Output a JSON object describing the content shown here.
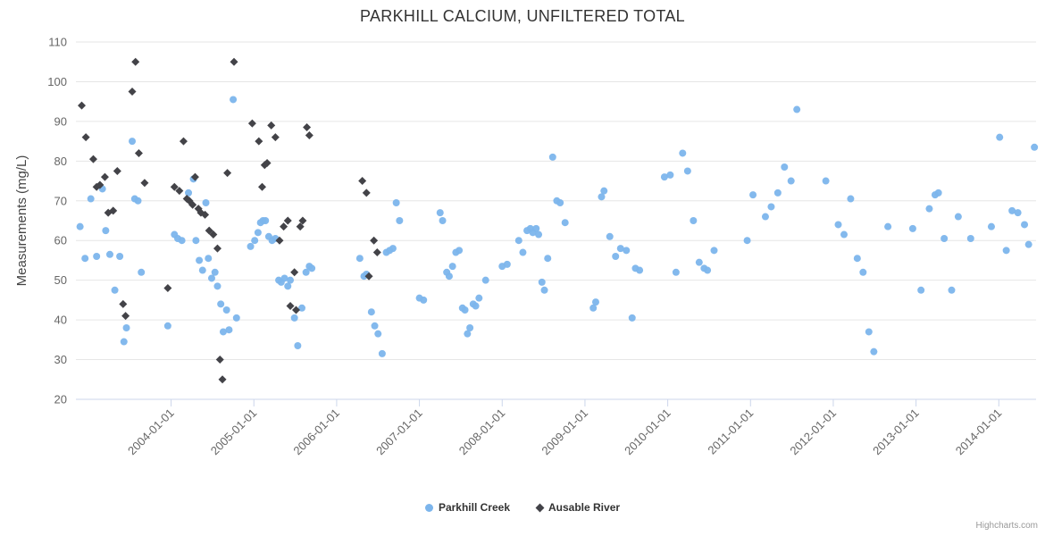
{
  "chart": {
    "credits": "Highcharts.com"
  },
  "chart_data": {
    "type": "scatter",
    "title": "PARKHILL CALCIUM, UNFILTERED TOTAL",
    "xlabel": "",
    "ylabel": "Measurements (mg/L)",
    "ylim": [
      20,
      110
    ],
    "yticks": [
      20,
      30,
      40,
      50,
      60,
      70,
      80,
      90,
      100,
      110
    ],
    "xlim": [
      2002.85,
      2014.45
    ],
    "xticks": [
      2004,
      2005,
      2006,
      2007,
      2008,
      2009,
      2010,
      2011,
      2012,
      2013,
      2014
    ],
    "xtick_labels": [
      "2004-01-01",
      "2005-01-01",
      "2006-01-01",
      "2007-01-01",
      "2008-01-01",
      "2009-01-01",
      "2010-01-01",
      "2011-01-01",
      "2012-01-01",
      "2013-01-01",
      "2014-01-01"
    ],
    "grid": true,
    "grid_color": "#e6e6e6",
    "axis_line_color": "#ccd6eb",
    "label_color": "#666666",
    "legend_position": "bottom",
    "series": [
      {
        "name": "Parkhill Creek",
        "marker": "circle",
        "color": "#7cb5ec",
        "points": [
          [
            2002.9,
            63.5
          ],
          [
            2002.96,
            55.5
          ],
          [
            2003.03,
            70.5
          ],
          [
            2003.1,
            56.0
          ],
          [
            2003.17,
            73.0
          ],
          [
            2003.21,
            62.5
          ],
          [
            2003.26,
            56.5
          ],
          [
            2003.32,
            47.5
          ],
          [
            2003.38,
            56.0
          ],
          [
            2003.43,
            34.5
          ],
          [
            2003.46,
            38.0
          ],
          [
            2003.53,
            85.0
          ],
          [
            2003.56,
            70.5
          ],
          [
            2003.6,
            70.0
          ],
          [
            2003.64,
            52.0
          ],
          [
            2003.96,
            38.5
          ],
          [
            2004.04,
            61.5
          ],
          [
            2004.08,
            60.5
          ],
          [
            2004.13,
            60.0
          ],
          [
            2004.21,
            72.0
          ],
          [
            2004.27,
            75.5
          ],
          [
            2004.3,
            60.0
          ],
          [
            2004.34,
            55.0
          ],
          [
            2004.38,
            52.5
          ],
          [
            2004.42,
            69.5
          ],
          [
            2004.45,
            55.5
          ],
          [
            2004.49,
            50.5
          ],
          [
            2004.53,
            52.0
          ],
          [
            2004.56,
            48.5
          ],
          [
            2004.6,
            44.0
          ],
          [
            2004.63,
            37.0
          ],
          [
            2004.67,
            42.5
          ],
          [
            2004.7,
            37.5
          ],
          [
            2004.75,
            95.5
          ],
          [
            2004.79,
            40.5
          ],
          [
            2004.96,
            58.5
          ],
          [
            2005.01,
            60.0
          ],
          [
            2005.05,
            62.0
          ],
          [
            2005.08,
            64.5
          ],
          [
            2005.11,
            65.0
          ],
          [
            2005.14,
            65.0
          ],
          [
            2005.18,
            61.0
          ],
          [
            2005.22,
            60.0
          ],
          [
            2005.26,
            60.5
          ],
          [
            2005.3,
            50.0
          ],
          [
            2005.33,
            49.5
          ],
          [
            2005.37,
            50.5
          ],
          [
            2005.41,
            48.5
          ],
          [
            2005.44,
            50.0
          ],
          [
            2005.49,
            40.5
          ],
          [
            2005.53,
            33.5
          ],
          [
            2005.58,
            43.0
          ],
          [
            2005.63,
            52.0
          ],
          [
            2005.67,
            53.5
          ],
          [
            2005.7,
            53.0
          ],
          [
            2006.28,
            55.5
          ],
          [
            2006.33,
            51.0
          ],
          [
            2006.36,
            51.5
          ],
          [
            2006.42,
            42.0
          ],
          [
            2006.46,
            38.5
          ],
          [
            2006.5,
            36.5
          ],
          [
            2006.55,
            31.5
          ],
          [
            2006.6,
            57.0
          ],
          [
            2006.64,
            57.5
          ],
          [
            2006.68,
            58.0
          ],
          [
            2006.72,
            69.5
          ],
          [
            2006.76,
            65.0
          ],
          [
            2007.0,
            45.5
          ],
          [
            2007.05,
            45.0
          ],
          [
            2007.25,
            67.0
          ],
          [
            2007.28,
            65.0
          ],
          [
            2007.33,
            52.0
          ],
          [
            2007.36,
            51.0
          ],
          [
            2007.4,
            53.5
          ],
          [
            2007.44,
            57.0
          ],
          [
            2007.48,
            57.5
          ],
          [
            2007.52,
            43.0
          ],
          [
            2007.55,
            42.5
          ],
          [
            2007.58,
            36.5
          ],
          [
            2007.61,
            38.0
          ],
          [
            2007.65,
            44.0
          ],
          [
            2007.68,
            43.5
          ],
          [
            2007.72,
            45.5
          ],
          [
            2007.8,
            50.0
          ],
          [
            2008.0,
            53.5
          ],
          [
            2008.06,
            54.0
          ],
          [
            2008.2,
            60.0
          ],
          [
            2008.25,
            57.0
          ],
          [
            2008.3,
            62.5
          ],
          [
            2008.34,
            63.0
          ],
          [
            2008.37,
            62.0
          ],
          [
            2008.41,
            63.0
          ],
          [
            2008.44,
            61.5
          ],
          [
            2008.48,
            49.5
          ],
          [
            2008.51,
            47.5
          ],
          [
            2008.55,
            55.5
          ],
          [
            2008.61,
            81.0
          ],
          [
            2008.66,
            70.0
          ],
          [
            2008.7,
            69.5
          ],
          [
            2008.76,
            64.5
          ],
          [
            2009.1,
            43.0
          ],
          [
            2009.13,
            44.5
          ],
          [
            2009.2,
            71.0
          ],
          [
            2009.23,
            72.5
          ],
          [
            2009.3,
            61.0
          ],
          [
            2009.37,
            56.0
          ],
          [
            2009.43,
            58.0
          ],
          [
            2009.5,
            57.5
          ],
          [
            2009.57,
            40.5
          ],
          [
            2009.61,
            53.0
          ],
          [
            2009.66,
            52.5
          ],
          [
            2009.96,
            76.0
          ],
          [
            2010.03,
            76.5
          ],
          [
            2010.1,
            52.0
          ],
          [
            2010.18,
            82.0
          ],
          [
            2010.24,
            77.5
          ],
          [
            2010.31,
            65.0
          ],
          [
            2010.38,
            54.5
          ],
          [
            2010.44,
            53.0
          ],
          [
            2010.48,
            52.5
          ],
          [
            2010.56,
            57.5
          ],
          [
            2010.96,
            60.0
          ],
          [
            2011.03,
            71.5
          ],
          [
            2011.18,
            66.0
          ],
          [
            2011.25,
            68.5
          ],
          [
            2011.33,
            72.0
          ],
          [
            2011.41,
            78.5
          ],
          [
            2011.49,
            75.0
          ],
          [
            2011.56,
            93.0
          ],
          [
            2011.91,
            75.0
          ],
          [
            2012.06,
            64.0
          ],
          [
            2012.13,
            61.5
          ],
          [
            2012.21,
            70.5
          ],
          [
            2012.29,
            55.5
          ],
          [
            2012.36,
            52.0
          ],
          [
            2012.43,
            37.0
          ],
          [
            2012.49,
            32.0
          ],
          [
            2012.66,
            63.5
          ],
          [
            2012.96,
            63.0
          ],
          [
            2013.06,
            47.5
          ],
          [
            2013.16,
            68.0
          ],
          [
            2013.23,
            71.5
          ],
          [
            2013.27,
            72.0
          ],
          [
            2013.34,
            60.5
          ],
          [
            2013.43,
            47.5
          ],
          [
            2013.51,
            66.0
          ],
          [
            2013.66,
            60.5
          ],
          [
            2013.91,
            63.5
          ],
          [
            2014.01,
            86.0
          ],
          [
            2014.09,
            57.5
          ],
          [
            2014.16,
            67.5
          ],
          [
            2014.23,
            67.0
          ],
          [
            2014.31,
            64.0
          ],
          [
            2014.36,
            59.0
          ],
          [
            2014.43,
            83.5
          ]
        ]
      },
      {
        "name": "Ausable River",
        "marker": "diamond",
        "color": "#434348",
        "points": [
          [
            2002.92,
            94.0
          ],
          [
            2002.97,
            86.0
          ],
          [
            2003.06,
            80.5
          ],
          [
            2003.1,
            73.5
          ],
          [
            2003.14,
            74.0
          ],
          [
            2003.2,
            76.0
          ],
          [
            2003.24,
            67.0
          ],
          [
            2003.3,
            67.5
          ],
          [
            2003.35,
            77.5
          ],
          [
            2003.42,
            44.0
          ],
          [
            2003.45,
            41.0
          ],
          [
            2003.53,
            97.5
          ],
          [
            2003.57,
            105.0
          ],
          [
            2003.61,
            82.0
          ],
          [
            2003.68,
            74.5
          ],
          [
            2003.96,
            48.0
          ],
          [
            2004.04,
            73.5
          ],
          [
            2004.1,
            72.5
          ],
          [
            2004.15,
            85.0
          ],
          [
            2004.19,
            70.5
          ],
          [
            2004.22,
            70.0
          ],
          [
            2004.26,
            69.0
          ],
          [
            2004.29,
            76.0
          ],
          [
            2004.33,
            68.0
          ],
          [
            2004.36,
            67.0
          ],
          [
            2004.41,
            66.5
          ],
          [
            2004.46,
            62.5
          ],
          [
            2004.51,
            61.5
          ],
          [
            2004.56,
            58.0
          ],
          [
            2004.59,
            30.0
          ],
          [
            2004.62,
            25.0
          ],
          [
            2004.68,
            77.0
          ],
          [
            2004.76,
            105.0
          ],
          [
            2004.98,
            89.5
          ],
          [
            2005.06,
            85.0
          ],
          [
            2005.1,
            73.5
          ],
          [
            2005.13,
            79.0
          ],
          [
            2005.16,
            79.5
          ],
          [
            2005.21,
            89.0
          ],
          [
            2005.26,
            86.0
          ],
          [
            2005.31,
            60.0
          ],
          [
            2005.36,
            63.5
          ],
          [
            2005.41,
            65.0
          ],
          [
            2005.44,
            43.5
          ],
          [
            2005.49,
            52.0
          ],
          [
            2005.51,
            42.5
          ],
          [
            2005.56,
            63.5
          ],
          [
            2005.59,
            65.0
          ],
          [
            2005.64,
            88.5
          ],
          [
            2005.67,
            86.5
          ],
          [
            2006.31,
            75.0
          ],
          [
            2006.36,
            72.0
          ],
          [
            2006.39,
            51.0
          ],
          [
            2006.45,
            60.0
          ],
          [
            2006.49,
            57.0
          ]
        ]
      }
    ]
  }
}
